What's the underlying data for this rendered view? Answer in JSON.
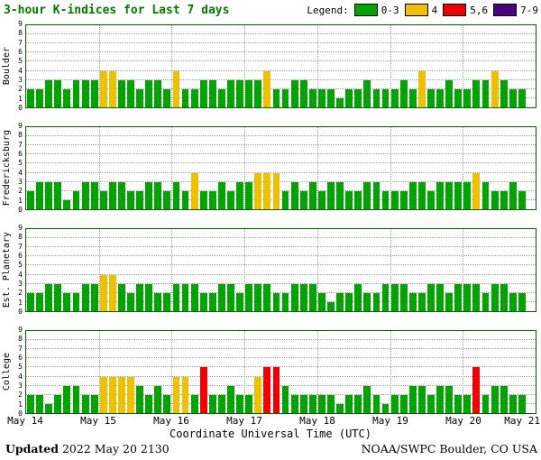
{
  "title": "3-hour K-indices for Last 7 days",
  "legend": {
    "label": "Legend:",
    "items": [
      {
        "label": "0-3",
        "color": "#00A300"
      },
      {
        "label": "4",
        "color": "#EDC000"
      },
      {
        "label": "5,6",
        "color": "#EE0000"
      },
      {
        "label": "7-9",
        "color": "#4B0082"
      }
    ]
  },
  "colors": {
    "green": "#00A300",
    "yellow": "#EDC000",
    "red": "#EE0000",
    "purple": "#4B0082",
    "title_green": "#007A00",
    "frame_green": "#066000"
  },
  "x_axis": {
    "title": "Coordinate Universal Time (UTC)",
    "tick_labels": [
      "May 14",
      "May 15",
      "May 16",
      "May 17",
      "May 18",
      "May 19",
      "May 20",
      "May 21"
    ],
    "slots_per_day": 8
  },
  "y_axis": {
    "min": 0,
    "max": 9,
    "tick_labels": [
      "0",
      "1",
      "2",
      "3",
      "4",
      "5",
      "6",
      "7",
      "8",
      "9"
    ]
  },
  "footer": {
    "updated_label": "Updated",
    "updated_value": "2022 May 20 2130",
    "credit": "NOAA/SWPC Boulder, CO USA"
  },
  "chart_data": [
    {
      "type": "bar",
      "station": "Boulder",
      "ylim": [
        0,
        9
      ],
      "values": [
        2,
        2,
        3,
        3,
        2,
        3,
        3,
        3,
        4,
        4,
        3,
        3,
        2,
        3,
        3,
        2,
        4,
        2,
        2,
        3,
        3,
        2,
        3,
        3,
        3,
        3,
        4,
        2,
        2,
        3,
        3,
        2,
        2,
        2,
        1,
        2,
        2,
        3,
        2,
        2,
        2,
        3,
        2,
        4,
        2,
        2,
        3,
        2,
        2,
        3,
        3,
        4,
        3,
        2,
        2
      ]
    },
    {
      "type": "bar",
      "station": "Fredericksburg",
      "ylim": [
        0,
        9
      ],
      "values": [
        2,
        3,
        3,
        3,
        1,
        2,
        3,
        3,
        2,
        3,
        3,
        2,
        2,
        3,
        3,
        2,
        3,
        2,
        4,
        2,
        2,
        3,
        2,
        3,
        3,
        4,
        4,
        4,
        2,
        3,
        2,
        3,
        2,
        3,
        3,
        2,
        2,
        3,
        3,
        2,
        2,
        2,
        3,
        3,
        2,
        3,
        3,
        3,
        3,
        4,
        3,
        2,
        2,
        3,
        2
      ]
    },
    {
      "type": "bar",
      "station": "Est. Planetary",
      "ylim": [
        0,
        9
      ],
      "values": [
        2,
        2,
        3,
        3,
        2,
        2,
        3,
        3,
        4,
        4,
        3,
        2,
        3,
        3,
        2,
        2,
        3,
        3,
        3,
        2,
        2,
        3,
        3,
        2,
        3,
        3,
        3,
        2,
        2,
        3,
        3,
        3,
        2,
        1,
        2,
        2,
        3,
        2,
        2,
        3,
        3,
        3,
        2,
        2,
        3,
        3,
        2,
        3,
        3,
        3,
        2,
        3,
        3,
        2,
        2
      ]
    },
    {
      "type": "bar",
      "station": "College",
      "ylim": [
        0,
        9
      ],
      "values": [
        2,
        2,
        1,
        2,
        3,
        3,
        2,
        2,
        4,
        4,
        4,
        4,
        3,
        2,
        3,
        2,
        4,
        4,
        2,
        5,
        2,
        2,
        3,
        2,
        2,
        4,
        5,
        5,
        3,
        2,
        2,
        2,
        2,
        2,
        1,
        2,
        2,
        3,
        2,
        1,
        2,
        2,
        3,
        3,
        2,
        3,
        3,
        2,
        2,
        5,
        2,
        3,
        3,
        2,
        2
      ]
    }
  ]
}
